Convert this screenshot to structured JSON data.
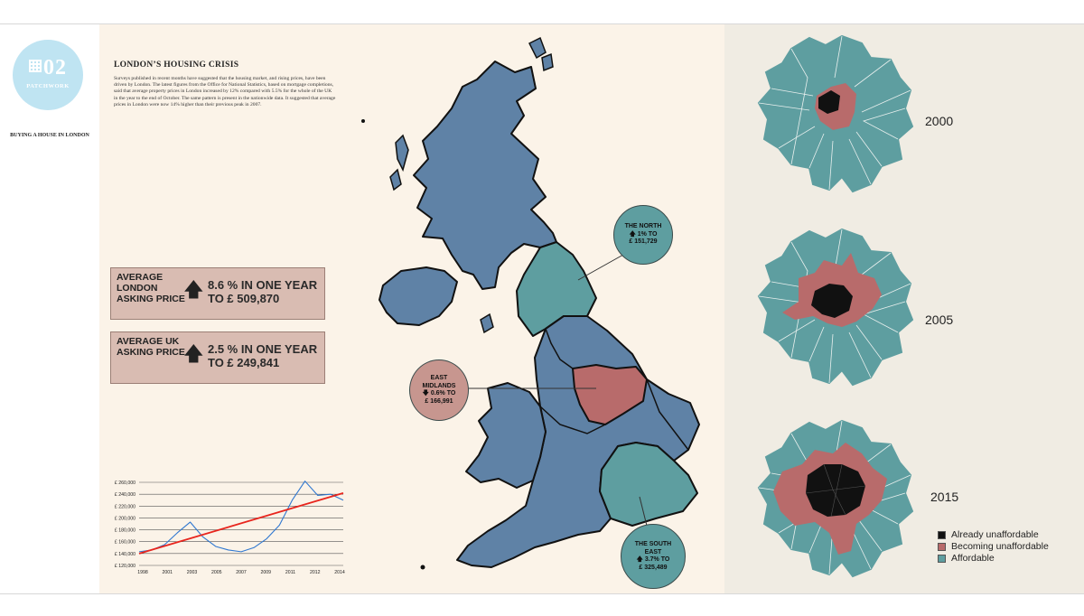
{
  "badge": {
    "number": "02",
    "label": "PATCHWORK"
  },
  "sidebar": {
    "section_label": "BUYING A HOUSE IN LONDON"
  },
  "article": {
    "title": "LONDON’S HOUSING CRISIS",
    "body": "Surveys published in recent months have suggested that the housing market, and rising prices, have been driven by London. The latest figures from the Office for National Statistics, based on mortgage completions, said that average property prices in London increased by 12% compared with 5.5% for the whole of the UK in the year to the end of October. The same pattern is present in the nationwide data. It suggested that average prices in London were now 14% higher than their previous peak in 2007."
  },
  "price_boxes": [
    {
      "label": "AVERAGE LONDON ASKING PRICE",
      "arrow": "up",
      "value": "8.6 % IN ONE YEAR TO £ 509,870"
    },
    {
      "label": "AVERAGE UK ASKING PRICE",
      "arrow": "up",
      "value": "2.5 % IN ONE YEAR TO £ 249,841"
    }
  ],
  "callouts": {
    "north": {
      "title": "THE NORTH",
      "change": "🡅 1% TO",
      "price": "£ 151,729"
    },
    "east_midlands": {
      "title": "EAST MIDLANDS",
      "change": "🡇 0.6% TO",
      "price": "£ 166,991"
    },
    "south_east": {
      "title": "THE SOUTH EAST",
      "change": "🡅 3.7% TO",
      "price": "£ 325,489"
    }
  },
  "london_maps": [
    {
      "year": "2000"
    },
    {
      "year": "2005"
    },
    {
      "year": "2015"
    }
  ],
  "legend": [
    {
      "label": "Already unaffordable",
      "color": "#111111"
    },
    {
      "label": "Becoming unaffordable",
      "color": "#b86b6b"
    },
    {
      "label": "Affordable",
      "color": "#5e9ea0"
    }
  ],
  "colors": {
    "region_blue": "#5f82a6",
    "region_teal": "#5e9ea0",
    "region_red": "#b86b6b",
    "line_blue": "#2f77d0",
    "trend_red": "#e8251d"
  },
  "chart_data": {
    "type": "line",
    "x_tick_labels": [
      "1998",
      "2001",
      "2003",
      "2005",
      "2007",
      "2009",
      "2011",
      "2012",
      "2014"
    ],
    "y_tick_labels": [
      "£ 260,000",
      "£ 240,000",
      "£ 220,000",
      "£ 200,000",
      "£ 180,000",
      "£ 160,000",
      "£ 140,000",
      "£ 120,000"
    ],
    "ylim": [
      120000,
      260000
    ],
    "series": [
      {
        "color": "#2f77d0",
        "x": [
          1998,
          1999,
          2000,
          2001,
          2002,
          2003,
          2004,
          2005,
          2006,
          2007,
          2008,
          2009,
          2010,
          2011,
          2012,
          2013,
          2014
        ],
        "y": [
          143000,
          146000,
          155000,
          175000,
          193000,
          168000,
          152000,
          146000,
          143000,
          150000,
          165000,
          188000,
          230000,
          262000,
          238000,
          240000,
          230000
        ]
      },
      {
        "color": "#e8251d",
        "x": [
          1998,
          2014
        ],
        "y": [
          140000,
          242000
        ]
      }
    ]
  }
}
